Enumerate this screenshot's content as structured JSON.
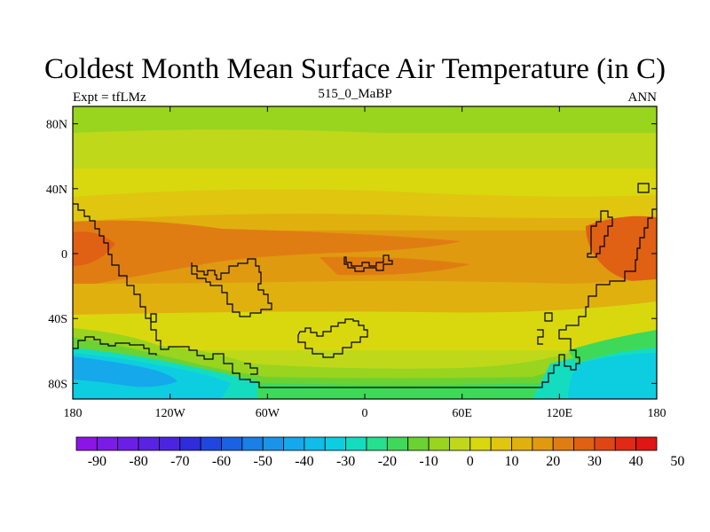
{
  "title": "Coldest Month Mean Surface Air Temperature (in C)",
  "left_string": "Expt = tfLMz",
  "center_string": "515_0_MaBP",
  "right_string": "ANN",
  "y_ticks": [
    {
      "label": "80N",
      "lat": 80
    },
    {
      "label": "40N",
      "lat": 40
    },
    {
      "label": "0",
      "lat": 0
    },
    {
      "label": "40S",
      "lat": -40
    },
    {
      "label": "80S",
      "lat": -80
    }
  ],
  "x_ticks": [
    {
      "label": "180",
      "lon": -180
    },
    {
      "label": "120W",
      "lon": -120
    },
    {
      "label": "60W",
      "lon": -60
    },
    {
      "label": "0",
      "lon": 0
    },
    {
      "label": "60E",
      "lon": 60
    },
    {
      "label": "120E",
      "lon": 120
    },
    {
      "label": "180",
      "lon": 180
    }
  ],
  "colorbar": {
    "colors": [
      "#8a15e6",
      "#7a1be6",
      "#6b1fe6",
      "#5a22e3",
      "#4a24e0",
      "#2f2cdc",
      "#1f47e0",
      "#1a62e3",
      "#1a7fe6",
      "#1a94e8",
      "#15a8ea",
      "#10bde8",
      "#0dcee0",
      "#14ddbf",
      "#25e08f",
      "#3fd95a",
      "#6bd233",
      "#99d41f",
      "#bfd81a",
      "#d9d80f",
      "#e0c60f",
      "#e0b00f",
      "#e09a10",
      "#e07d12",
      "#e06014",
      "#e04515",
      "#e02a15",
      "#e01515"
    ],
    "labels": [
      "-90",
      "-80",
      "-70",
      "-60",
      "-50",
      "-40",
      "-30",
      "-20",
      "-10",
      "0",
      "10",
      "20",
      "30",
      "40",
      "50"
    ]
  },
  "map_colors": {
    "c_neg20": "#15a8ea",
    "c_neg10": "#0dcee0",
    "c_neg5": "#14ddbf",
    "c_0": "#3fd95a",
    "c_5": "#6bd233",
    "c_10": "#99d41f",
    "c_15": "#bfd81a",
    "c_20": "#d9d80f",
    "c_25": "#e0c60f",
    "c_30": "#e0b00f",
    "c_35": "#e09a10",
    "c_40": "#e07d12",
    "c_45": "#e06014"
  }
}
